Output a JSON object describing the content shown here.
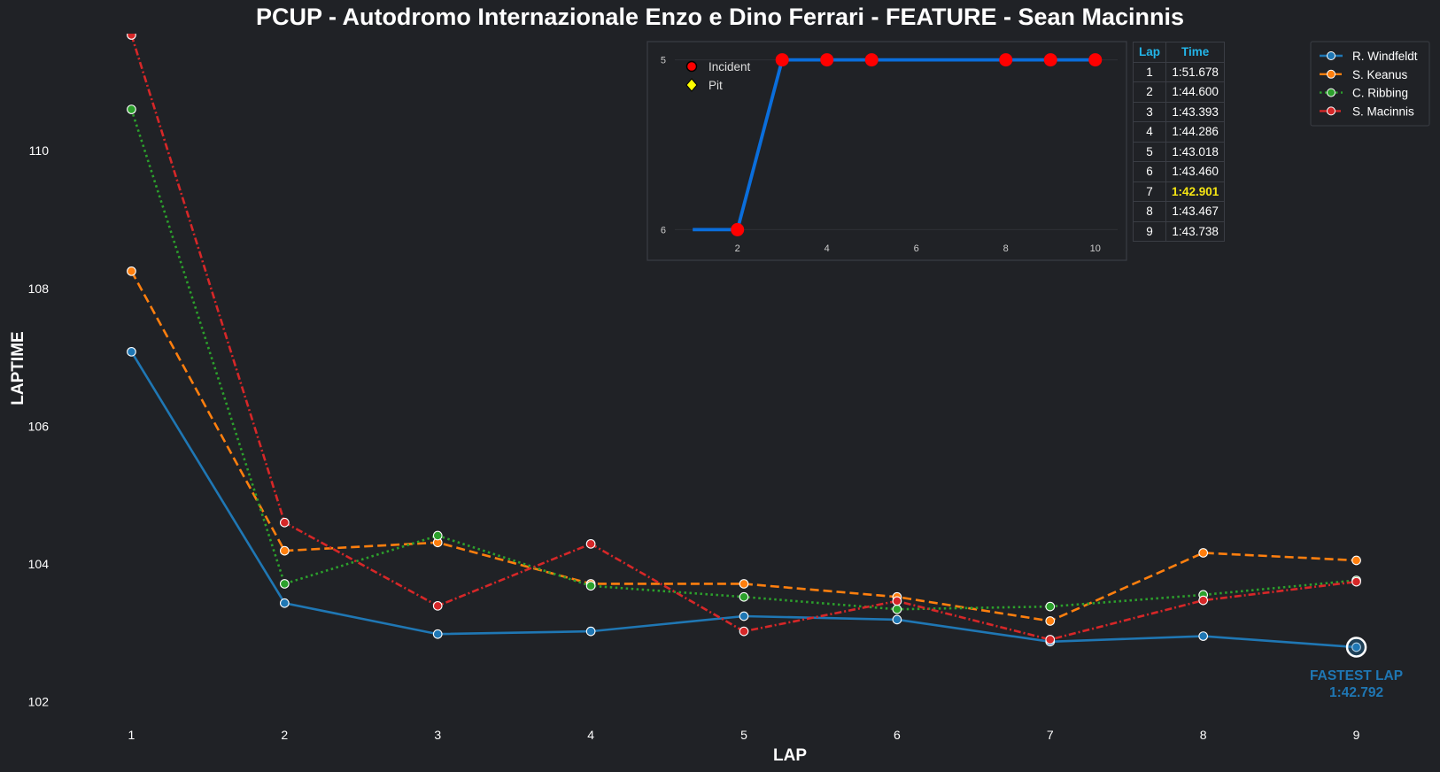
{
  "title": "PCUP - Autodromo Internazionale Enzo e Dino Ferrari - FEATURE - Sean Macinnis",
  "colors": {
    "background": "#202226",
    "windfeldt": "#1f77b4",
    "keanus": "#ff7f0e",
    "ribbing": "#2ca02c",
    "macinnis": "#d62728",
    "inset_line": "#0a6edc",
    "inset_marker": "#ff0000",
    "pit_marker": "#ffff00",
    "table_header": "#23b5e8",
    "fastest_highlight": "#f5e513"
  },
  "chart_data": [
    {
      "type": "line",
      "xlabel": "LAP",
      "ylabel": "LAPTIME",
      "x": [
        1,
        2,
        3,
        4,
        5,
        6,
        7,
        8,
        9
      ],
      "xlim": [
        0.5,
        9.5
      ],
      "ylim": [
        101.8,
        111.7
      ],
      "yticks": [
        102,
        104,
        106,
        108,
        110
      ],
      "grid": false,
      "legend_position": "top-right",
      "series": [
        {
          "name": "R. Windfeldt",
          "style": "solid",
          "color": "#1f77b4",
          "values": [
            107.08,
            103.43,
            102.98,
            103.02,
            103.24,
            103.19,
            102.87,
            102.95,
            102.79
          ]
        },
        {
          "name": "S. Keanus",
          "style": "dashed",
          "color": "#ff7f0e",
          "values": [
            108.25,
            104.19,
            104.31,
            103.71,
            103.71,
            103.52,
            103.17,
            104.16,
            104.05
          ]
        },
        {
          "name": "C. Ribbing",
          "style": "dotted",
          "color": "#2ca02c",
          "values": [
            110.6,
            103.71,
            104.41,
            103.68,
            103.52,
            103.34,
            103.38,
            103.55,
            103.76
          ]
        },
        {
          "name": "S. Macinnis",
          "style": "dashdot",
          "color": "#d62728",
          "values": [
            111.68,
            104.6,
            103.39,
            104.29,
            103.02,
            103.46,
            102.9,
            103.47,
            103.74
          ]
        }
      ],
      "annotation": {
        "series": "R. Windfeldt",
        "lap": 9,
        "label": "FASTEST LAP",
        "time": "1:42.792"
      }
    },
    {
      "type": "line",
      "title": "",
      "x": [
        1,
        2,
        3,
        4,
        5,
        6,
        7,
        8,
        9,
        10
      ],
      "values": [
        6,
        6,
        5,
        5,
        5,
        5,
        5,
        5,
        5,
        5
      ],
      "xticks": [
        2,
        4,
        6,
        8,
        10
      ],
      "yticks": [
        5,
        6
      ],
      "y_inverted": true,
      "xlim": [
        0.6,
        10.5
      ],
      "ylim": [
        6.05,
        4.95
      ],
      "incident_laps": [
        2,
        3,
        4,
        5,
        8,
        9,
        10
      ],
      "pit_laps": [],
      "legend": [
        {
          "label": "Incident",
          "marker": "circle",
          "color": "#ff0000"
        },
        {
          "label": "Pit",
          "marker": "diamond",
          "color": "#ffff00"
        }
      ]
    }
  ],
  "lap_table": {
    "headers": [
      "Lap",
      "Time"
    ],
    "rows": [
      [
        "1",
        "1:51.678"
      ],
      [
        "2",
        "1:44.600"
      ],
      [
        "3",
        "1:43.393"
      ],
      [
        "4",
        "1:44.286"
      ],
      [
        "5",
        "1:43.018"
      ],
      [
        "6",
        "1:43.460"
      ],
      [
        "7",
        "1:42.901"
      ],
      [
        "8",
        "1:43.467"
      ],
      [
        "9",
        "1:43.738"
      ]
    ],
    "fastest_row": 6
  }
}
